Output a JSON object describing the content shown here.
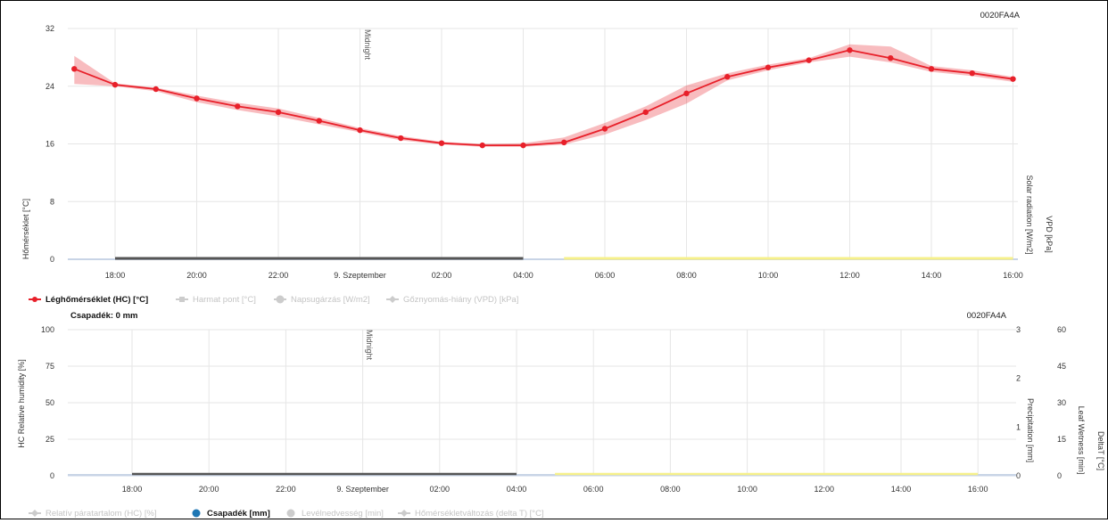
{
  "chart_data": [
    {
      "type": "line",
      "id_label": "0020FA4A",
      "x_ticks": [
        "18:00",
        "20:00",
        "22:00",
        "9. Szeptember",
        "02:00",
        "04:00",
        "06:00",
        "08:00",
        "10:00",
        "12:00",
        "14:00",
        "16:00"
      ],
      "midnight_label": "Midnight",
      "ylabel": "Hőmérséklet [°C]",
      "right_labels": [
        "Solar radiation [W/m2]",
        "VPD [kPa]"
      ],
      "yticks": [
        "0",
        "8",
        "16",
        "24",
        "32"
      ],
      "ylim": [
        0,
        32
      ],
      "x_hours": [
        17,
        18,
        19,
        20,
        21,
        22,
        23,
        24,
        25,
        26,
        27,
        28,
        29,
        30,
        31,
        32,
        33,
        34,
        35,
        36,
        37,
        38,
        39,
        40
      ],
      "series": [
        {
          "name": "Léghőmérséklet (HC) [°C]",
          "color": "#e8202a",
          "values": [
            26.4,
            24.2,
            23.6,
            22.3,
            21.2,
            20.4,
            19.2,
            17.9,
            16.8,
            16.1,
            15.8,
            15.8,
            16.2,
            18.1,
            20.4,
            23.0,
            25.3,
            26.6,
            27.6,
            29.0,
            27.9,
            26.4,
            25.8,
            25.0
          ],
          "band_low": [
            24.3,
            24.0,
            23.3,
            21.8,
            20.7,
            19.8,
            18.7,
            17.6,
            16.5,
            15.9,
            15.6,
            15.6,
            15.9,
            17.3,
            19.3,
            21.6,
            24.8,
            26.2,
            27.3,
            28.1,
            27.3,
            26.0,
            25.4,
            24.6
          ],
          "band_high": [
            28.2,
            24.4,
            23.8,
            22.7,
            21.7,
            20.9,
            19.6,
            18.2,
            17.1,
            16.3,
            16.0,
            16.1,
            16.9,
            18.9,
            21.2,
            24.1,
            25.8,
            27.0,
            27.9,
            29.8,
            29.5,
            26.8,
            26.2,
            25.3
          ]
        },
        {
          "name": "Harmat pont [°C]",
          "color": "#cccccc",
          "values": []
        },
        {
          "name": "Napsugárzás [W/m2]",
          "color": "#cccccc",
          "values": []
        },
        {
          "name": "Gőznyomás-hiány (VPD) [kPa]",
          "color": "#cccccc",
          "values": []
        }
      ],
      "night_bar": {
        "from_hour": 18,
        "to_hour": 28,
        "color": "#555555"
      },
      "day_bar": {
        "from_hour": 29,
        "to_hour": 40,
        "color": "#f6f08a"
      }
    },
    {
      "type": "line",
      "id_label": "0020FA4A",
      "subtitle": "Csapadék: 0 mm",
      "x_ticks": [
        "18:00",
        "20:00",
        "22:00",
        "9. Szeptember",
        "02:00",
        "04:00",
        "06:00",
        "08:00",
        "10:00",
        "12:00",
        "14:00",
        "16:00"
      ],
      "midnight_label": "Midnight",
      "ylabel": "HC Relative humidity [%]",
      "yticks": [
        "0",
        "25",
        "50",
        "75",
        "100"
      ],
      "ylim": [
        0,
        100
      ],
      "right_axis_1": {
        "label": "Precipitation [mm]",
        "ticks": [
          "0",
          "1",
          "2",
          "3"
        ]
      },
      "right_axis_2": {
        "label": "Leaf Wetness [min]",
        "ticks": [
          "0",
          "15",
          "30",
          "45",
          "60"
        ]
      },
      "right_axis_3": {
        "label": "DeltaT [°C]"
      },
      "series": [
        {
          "name": "Relatív páratartalom (HC) [%]",
          "color": "#cccccc",
          "values": []
        },
        {
          "name": "Csapadék [mm]",
          "color": "#1f77b4",
          "values": []
        },
        {
          "name": "Levélnedvesség [min]",
          "color": "#cccccc",
          "values": []
        },
        {
          "name": "Hőmérsékletváltozás (delta T) [°C]",
          "color": "#cccccc",
          "values": []
        }
      ],
      "night_bar": {
        "from_hour": 18,
        "to_hour": 28,
        "color": "#555555"
      },
      "day_bar": {
        "from_hour": 29,
        "to_hour": 40,
        "color": "#f6f08a"
      }
    }
  ]
}
